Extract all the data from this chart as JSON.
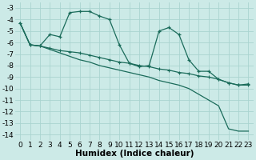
{
  "xlabel": "Humidex (Indice chaleur)",
  "background_color": "#cceae7",
  "grid_color": "#aad4d0",
  "line_color": "#1a6b5a",
  "xlim": [
    -0.5,
    23.5
  ],
  "ylim": [
    -14.5,
    -2.5
  ],
  "xticks": [
    0,
    1,
    2,
    3,
    4,
    5,
    6,
    7,
    8,
    9,
    10,
    11,
    12,
    13,
    14,
    15,
    16,
    17,
    18,
    19,
    20,
    21,
    22,
    23
  ],
  "yticks": [
    -14,
    -13,
    -12,
    -11,
    -10,
    -9,
    -8,
    -7,
    -6,
    -5,
    -4,
    -3
  ],
  "series1_x": [
    0,
    1,
    2,
    3,
    4,
    5,
    6,
    7,
    8,
    9,
    10,
    11,
    12,
    13,
    14,
    15,
    16,
    17,
    18,
    19,
    20,
    21,
    22,
    23
  ],
  "series1_y": [
    -4.3,
    -6.2,
    -6.3,
    -5.3,
    -5.5,
    -3.4,
    -3.3,
    -3.3,
    -3.7,
    -4.0,
    -6.2,
    -7.8,
    -8.1,
    -8.0,
    -5.0,
    -4.7,
    -5.3,
    -7.5,
    -8.5,
    -8.5,
    -9.2,
    -9.5,
    -9.7,
    -9.6
  ],
  "series2_x": [
    0,
    1,
    2,
    3,
    4,
    5,
    6,
    7,
    8,
    9,
    10,
    11,
    12,
    13,
    14,
    15,
    16,
    17,
    18,
    19,
    20,
    21,
    22,
    23
  ],
  "series2_y": [
    -4.3,
    -6.2,
    -6.3,
    -6.5,
    -6.7,
    -6.8,
    -6.9,
    -7.1,
    -7.3,
    -7.5,
    -7.7,
    -7.8,
    -8.0,
    -8.1,
    -8.3,
    -8.4,
    -8.6,
    -8.7,
    -8.9,
    -9.0,
    -9.2,
    -9.5,
    -9.7,
    -9.7
  ],
  "series3_x": [
    0,
    1,
    2,
    3,
    4,
    5,
    6,
    7,
    8,
    9,
    10,
    11,
    12,
    13,
    14,
    15,
    16,
    17,
    18,
    19,
    20,
    21,
    22,
    23
  ],
  "series3_y": [
    -4.3,
    -6.2,
    -6.3,
    -6.6,
    -6.9,
    -7.2,
    -7.5,
    -7.7,
    -8.0,
    -8.2,
    -8.4,
    -8.6,
    -8.8,
    -9.0,
    -9.3,
    -9.5,
    -9.7,
    -10.0,
    -10.5,
    -11.0,
    -11.5,
    -13.5,
    -13.7,
    -13.7
  ],
  "tick_fontsize": 6.5,
  "xlabel_fontsize": 7.5
}
